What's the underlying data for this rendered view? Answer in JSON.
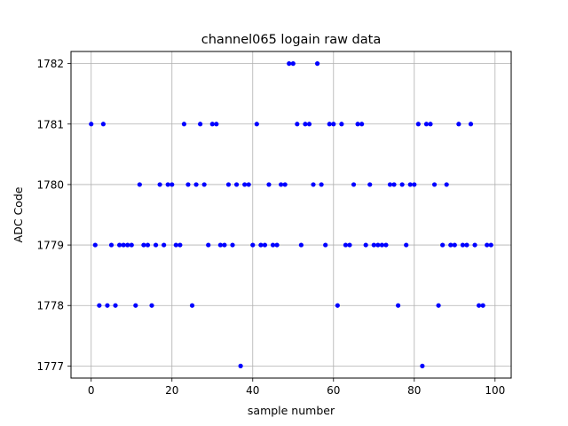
{
  "chart_data": {
    "type": "scatter",
    "title": "channel065 logain raw data",
    "xlabel": "sample number",
    "ylabel": "ADC Code",
    "xlim": [
      -5,
      104
    ],
    "ylim": [
      1776.8,
      1782.2
    ],
    "xticks": [
      0,
      20,
      40,
      60,
      80,
      100
    ],
    "yticks": [
      1777,
      1778,
      1779,
      1780,
      1781,
      1782
    ],
    "grid": true,
    "marker_color": "#0000ff",
    "x": [
      0,
      1,
      2,
      3,
      4,
      5,
      6,
      7,
      8,
      9,
      10,
      11,
      12,
      13,
      14,
      15,
      16,
      17,
      18,
      19,
      20,
      21,
      22,
      23,
      24,
      25,
      26,
      27,
      28,
      29,
      30,
      31,
      32,
      33,
      34,
      35,
      36,
      37,
      38,
      39,
      40,
      41,
      42,
      43,
      44,
      45,
      46,
      47,
      48,
      49,
      50,
      51,
      52,
      53,
      54,
      55,
      56,
      57,
      58,
      59,
      60,
      61,
      62,
      63,
      64,
      65,
      66,
      67,
      68,
      69,
      70,
      71,
      72,
      73,
      74,
      75,
      76,
      77,
      78,
      79,
      80,
      81,
      82,
      83,
      84,
      85,
      86,
      87,
      88,
      89,
      90,
      91,
      92,
      93,
      94,
      95,
      96,
      97,
      98,
      99
    ],
    "y": [
      1781,
      1779,
      1778,
      1781,
      1778,
      1779,
      1778,
      1779,
      1779,
      1779,
      1779,
      1778,
      1780,
      1779,
      1779,
      1778,
      1779,
      1780,
      1779,
      1780,
      1780,
      1779,
      1779,
      1781,
      1780,
      1778,
      1780,
      1781,
      1780,
      1779,
      1781,
      1781,
      1779,
      1779,
      1780,
      1779,
      1780,
      1777,
      1780,
      1780,
      1779,
      1781,
      1779,
      1779,
      1780,
      1779,
      1779,
      1780,
      1780,
      1782,
      1782,
      1781,
      1779,
      1781,
      1781,
      1780,
      1782,
      1780,
      1779,
      1781,
      1781,
      1778,
      1781,
      1779,
      1779,
      1780,
      1781,
      1781,
      1779,
      1780,
      1779,
      1779,
      1779,
      1779,
      1780,
      1780,
      1778,
      1780,
      1779,
      1780,
      1780,
      1781,
      1777,
      1781,
      1781,
      1780,
      1778,
      1779,
      1780,
      1779,
      1779,
      1781,
      1779,
      1779,
      1781,
      1779,
      1778,
      1778,
      1779,
      1779
    ]
  }
}
